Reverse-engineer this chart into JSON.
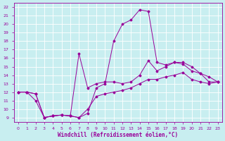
{
  "title": "Windchill (Refroidissement éolien,°C)",
  "background_color": "#c8eef0",
  "grid_color": "#ffffff",
  "line_color": "#990099",
  "xlim": [
    -0.5,
    23.5
  ],
  "ylim": [
    8.5,
    22.5
  ],
  "xticks": [
    0,
    1,
    2,
    3,
    4,
    5,
    6,
    7,
    8,
    9,
    10,
    11,
    12,
    13,
    14,
    15,
    16,
    17,
    18,
    19,
    20,
    21,
    22,
    23
  ],
  "yticks": [
    9,
    10,
    11,
    12,
    13,
    14,
    15,
    16,
    17,
    18,
    19,
    20,
    21,
    22
  ],
  "line1_x": [
    0,
    1,
    2,
    3,
    4,
    5,
    6,
    7,
    8,
    9,
    10,
    11,
    12,
    13,
    14,
    15,
    16,
    17,
    18,
    19,
    20,
    21,
    22,
    23
  ],
  "line1_y": [
    12,
    12,
    11.8,
    9,
    9.2,
    9.3,
    9.2,
    9.0,
    9.5,
    12.5,
    13,
    18,
    20,
    20.5,
    21.7,
    21.5,
    15.5,
    15.2,
    15.5,
    15.5,
    15.0,
    14.2,
    13.2,
    13.2
  ],
  "line2_x": [
    0,
    1,
    2,
    3,
    4,
    5,
    6,
    7,
    8,
    9,
    10,
    11,
    12,
    13,
    14,
    15,
    16,
    17,
    18,
    19,
    20,
    21,
    22,
    23
  ],
  "line2_y": [
    12,
    12,
    11.8,
    9,
    9.2,
    9.3,
    9.2,
    16.5,
    12.5,
    13,
    13.2,
    13.2,
    13.0,
    13.2,
    14.0,
    15.7,
    14.5,
    15.0,
    15.5,
    15.3,
    14.5,
    14.2,
    13.8,
    13.2
  ],
  "line3_x": [
    0,
    1,
    2,
    3,
    4,
    5,
    6,
    7,
    8,
    9,
    10,
    11,
    12,
    13,
    14,
    15,
    16,
    17,
    18,
    19,
    20,
    21,
    22,
    23
  ],
  "line3_y": [
    12,
    12,
    11.0,
    9,
    9.2,
    9.3,
    9.2,
    9.0,
    10.0,
    11.5,
    11.8,
    12.0,
    12.2,
    12.5,
    13.0,
    13.5,
    13.5,
    13.8,
    14.0,
    14.3,
    13.5,
    13.2,
    13.0,
    13.2
  ],
  "tick_fontsize": 4.5,
  "xlabel_fontsize": 5.5,
  "marker": "D",
  "marker_size": 1.5,
  "linewidth": 0.7
}
